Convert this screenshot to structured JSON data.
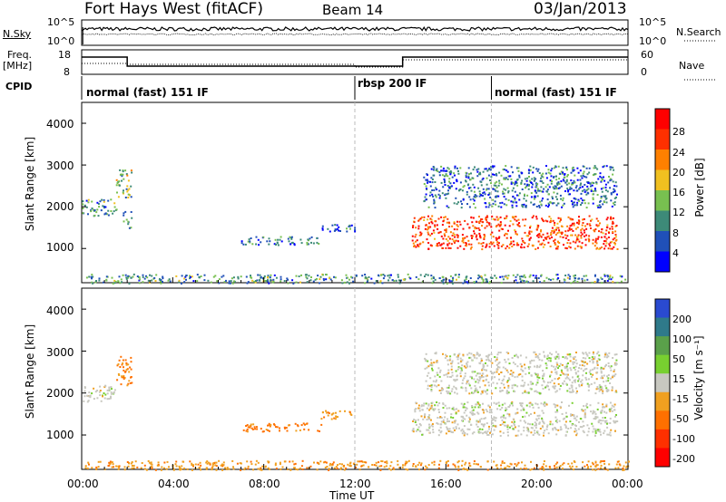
{
  "header": {
    "station": "Fort Hays West (fitACF)",
    "beam": "Beam 14",
    "date": "03/Jan/2013"
  },
  "noise_panel": {
    "left_label": "N.Sky",
    "right_label": "N.Search",
    "left_ticks": [
      "10^5",
      "10^0"
    ],
    "right_ticks": [
      "10^5",
      "10^0"
    ]
  },
  "freq_panel": {
    "left_label_1": "Freq.",
    "left_label_2": "[MHz]",
    "left_ticks": [
      "18",
      "8"
    ],
    "right_label": "Nave",
    "right_ticks": [
      "60",
      "0"
    ]
  },
  "cpid": {
    "label": "CPID",
    "segments": [
      {
        "label": "normal (fast) 151 IF",
        "start_hour": 0,
        "end_hour": 12
      },
      {
        "label": "rbsp 200 IF",
        "start_hour": 12,
        "end_hour": 18
      },
      {
        "label": "normal (fast) 151 IF",
        "start_hour": 18,
        "end_hour": 24
      }
    ]
  },
  "chart_data": [
    {
      "type": "heatmap",
      "parameter": "Power",
      "ylabel": "Slant Range [km]",
      "xlabel": "",
      "ylim": [
        180,
        4500
      ],
      "xlim": [
        0,
        24
      ],
      "yticks": [
        "1000",
        "2000",
        "3000",
        "4000"
      ],
      "colorbar": {
        "label": "Power [dB]",
        "ticks": [
          "4",
          "8",
          "12",
          "16",
          "20",
          "24",
          "28"
        ],
        "colors": [
          "#0000ff",
          "#2050b8",
          "#3d8a78",
          "#78c050",
          "#f0c020",
          "#ff8000",
          "#ff3000",
          "#ff0000"
        ]
      },
      "regions": [
        {
          "start_hour": 0.0,
          "end_hour": 1.5,
          "range_km": [
            1800,
            2200
          ],
          "power_db": 10
        },
        {
          "start_hour": 1.5,
          "end_hour": 2.2,
          "range_km": [
            2200,
            2900
          ],
          "power_db": 14
        },
        {
          "start_hour": 1.8,
          "end_hour": 2.2,
          "range_km": [
            1500,
            1900
          ],
          "power_db": 12
        },
        {
          "start_hour": 7.0,
          "end_hour": 10.5,
          "range_km": [
            1100,
            1300
          ],
          "power_db": 8
        },
        {
          "start_hour": 10.5,
          "end_hour": 12.0,
          "range_km": [
            1400,
            1600
          ],
          "power_db": 6
        },
        {
          "start_hour": 14.5,
          "end_hour": 23.5,
          "range_km": [
            1000,
            1800
          ],
          "power_db": 26
        },
        {
          "start_hour": 15.0,
          "end_hour": 23.5,
          "range_km": [
            2000,
            3000
          ],
          "power_db": 8
        },
        {
          "start_hour": 0.0,
          "end_hour": 24.0,
          "range_km": [
            180,
            400
          ],
          "power_db": 10
        }
      ]
    },
    {
      "type": "heatmap",
      "parameter": "Velocity",
      "ylabel": "Slant Range [km]",
      "xlabel": "Time UT",
      "ylim": [
        180,
        4500
      ],
      "xlim": [
        0,
        24
      ],
      "yticks": [
        "1000",
        "2000",
        "3000",
        "4000"
      ],
      "xticks": [
        "00:00",
        "04:00",
        "08:00",
        "12:00",
        "16:00",
        "20:00",
        "00:00"
      ],
      "colorbar": {
        "label": "Velocity [m s⁻¹]",
        "ticks": [
          "200",
          "100",
          "50",
          "15",
          "-15",
          "-50",
          "-100",
          "-200"
        ],
        "colors": [
          "#2a4ad0",
          "#2f7a8a",
          "#5aa04a",
          "#78d030",
          "#c8c8c0",
          "#f0a020",
          "#ff7000",
          "#ff3000",
          "#ff0000"
        ]
      },
      "regions": [
        {
          "start_hour": 0.0,
          "end_hour": 1.5,
          "range_km": [
            1800,
            2200
          ],
          "velocity_ms": 0
        },
        {
          "start_hour": 1.5,
          "end_hour": 2.2,
          "range_km": [
            2200,
            2900
          ],
          "velocity_ms": -60
        },
        {
          "start_hour": 7.0,
          "end_hour": 10.5,
          "range_km": [
            1100,
            1300
          ],
          "velocity_ms": -60
        },
        {
          "start_hour": 10.5,
          "end_hour": 12.0,
          "range_km": [
            1400,
            1600
          ],
          "velocity_ms": -40
        },
        {
          "start_hour": 14.5,
          "end_hour": 23.5,
          "range_km": [
            1000,
            1800
          ],
          "velocity_ms": 0
        },
        {
          "start_hour": 15.0,
          "end_hour": 23.5,
          "range_km": [
            2000,
            3000
          ],
          "velocity_ms": 0
        },
        {
          "start_hour": 0.0,
          "end_hour": 24.0,
          "range_km": [
            180,
            400
          ],
          "velocity_ms": -40
        }
      ]
    }
  ]
}
